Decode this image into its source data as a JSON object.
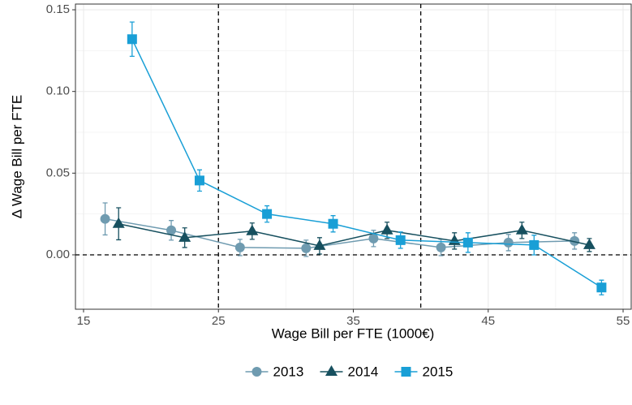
{
  "chart_data": {
    "type": "line",
    "x_label": "Wage Bill per FTE (1000€)",
    "y_label": "Δ Wage Bill per FTE",
    "xlim": [
      14.4,
      55.6
    ],
    "ylim": [
      -0.0333,
      0.1535
    ],
    "xticks": [
      15,
      25,
      35,
      45,
      55
    ],
    "yticks": [
      {
        "value": 0.15,
        "label": "0.15"
      },
      {
        "value": 0.1,
        "label": "0.10"
      },
      {
        "value": 0.05,
        "label": "0.05"
      },
      {
        "value": 0,
        "label": "0.00"
      }
    ],
    "vlines": [
      25,
      40
    ],
    "hline": 0,
    "grid": true,
    "legend": "bottom",
    "series": [
      {
        "name": "2013",
        "color": "#6f9bb0",
        "marker": "circle",
        "x": [
          16.6,
          21.5,
          26.6,
          31.5,
          36.5,
          41.5,
          46.5,
          51.4
        ],
        "values": [
          0.022,
          0.015,
          0.0045,
          0.004,
          0.01,
          0.0045,
          0.0075,
          0.0085
        ],
        "errors": [
          0.0098,
          0.006,
          0.005,
          0.005,
          0.005,
          0.005,
          0.005,
          0.005
        ]
      },
      {
        "name": "2014",
        "color": "#17505f",
        "marker": "triangle",
        "x": [
          17.6,
          22.5,
          27.5,
          32.5,
          37.5,
          42.5,
          47.5,
          52.5
        ],
        "values": [
          0.019,
          0.0105,
          0.0145,
          0.0055,
          0.015,
          0.0085,
          0.015,
          0.006
        ],
        "errors": [
          0.0098,
          0.006,
          0.005,
          0.005,
          0.005,
          0.005,
          0.005,
          0.004
        ]
      },
      {
        "name": "2015",
        "color": "#199fd6",
        "marker": "square",
        "x": [
          18.6,
          23.6,
          28.6,
          33.5,
          38.5,
          43.5,
          48.4,
          53.4
        ],
        "values": [
          0.132,
          0.0455,
          0.025,
          0.019,
          0.009,
          0.0075,
          0.006,
          -0.02
        ],
        "errors": [
          0.0105,
          0.0065,
          0.005,
          0.005,
          0.005,
          0.006,
          0.006,
          0.0045
        ]
      }
    ]
  }
}
